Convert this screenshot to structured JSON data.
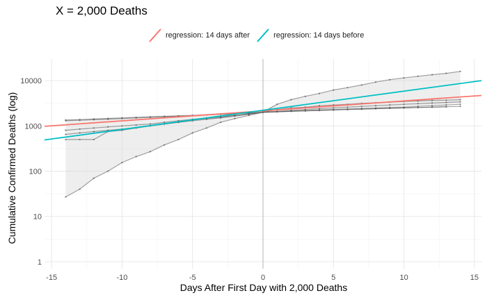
{
  "title": "X = 2,000 Deaths",
  "legend": {
    "items": [
      {
        "label": "regression: 14 days after",
        "color": "#F8766D"
      },
      {
        "label": "regression: 14 days before",
        "color": "#00BFC4"
      }
    ]
  },
  "chart_data": {
    "type": "line",
    "title": "X = 2,000 Deaths",
    "xlabel": "Days After First Day with 2,000 Deaths",
    "ylabel": "Cumulative Confirmed Deaths (log)",
    "y_scale": "log10",
    "xlim": [
      -15.5,
      15.5
    ],
    "ylim": [
      0.7,
      30000
    ],
    "x_ticks": [
      -15,
      -10,
      -5,
      0,
      5,
      10,
      15
    ],
    "y_ticks": [
      1,
      10,
      100,
      1000,
      10000
    ],
    "x_tick_labels": [
      "-15",
      "-10",
      "-5",
      "0",
      "5",
      "10",
      "15"
    ],
    "y_tick_labels": [
      "1",
      "10",
      "100",
      "1000",
      "10000"
    ],
    "grid": true,
    "legend_position": "top",
    "vline_x": 0,
    "ribbon": {
      "x": [
        -14,
        -13,
        -12,
        -11,
        -10,
        -9,
        -8,
        -7,
        -6,
        -5,
        -4,
        -3,
        -2,
        -1,
        0,
        1,
        2,
        3,
        4,
        5,
        6,
        7,
        8,
        9,
        10,
        11,
        12,
        13,
        14
      ],
      "lower": [
        27,
        40,
        70,
        100,
        155,
        210,
        270,
        380,
        500,
        700,
        900,
        1200,
        1450,
        1700,
        2000,
        2050,
        2100,
        2150,
        2200,
        2300,
        2350,
        2400,
        2500,
        2550,
        2650,
        2750,
        2850,
        2950,
        3200
      ],
      "upper": [
        1380,
        1400,
        1450,
        1500,
        1560,
        1600,
        1650,
        1700,
        1760,
        1800,
        1840,
        1890,
        1950,
        2000,
        2300,
        3000,
        3800,
        4500,
        5200,
        6200,
        7000,
        8000,
        9300,
        10500,
        11500,
        12500,
        13500,
        14500,
        16000
      ]
    },
    "series": [
      {
        "values": [
          27,
          40,
          70,
          100,
          155,
          210,
          270,
          380,
          500,
          700,
          900,
          1200,
          1450,
          1700,
          2000,
          3000,
          3800,
          4500,
          5200,
          6200,
          7000,
          8000,
          9300,
          10500,
          11500,
          12500,
          13500,
          14500,
          16000
        ]
      },
      {
        "values": [
          500,
          500,
          500,
          750,
          800,
          900,
          1000,
          1100,
          1200,
          1350,
          1450,
          1550,
          1700,
          1850,
          2000,
          2300,
          2500,
          2600,
          2800,
          2900,
          3000,
          3150,
          3250,
          3350,
          3450,
          3550,
          3650,
          3700,
          3800
        ]
      },
      {
        "values": [
          650,
          700,
          750,
          800,
          850,
          900,
          1000,
          1100,
          1200,
          1300,
          1400,
          1500,
          1650,
          1800,
          2000,
          2100,
          2200,
          2300,
          2400,
          2500,
          2600,
          2700,
          2800,
          2900,
          3000,
          3100,
          3200,
          3300,
          3400
        ]
      },
      {
        "values": [
          800,
          850,
          900,
          950,
          1000,
          1050,
          1100,
          1200,
          1300,
          1400,
          1500,
          1600,
          1700,
          1850,
          2000,
          2050,
          2100,
          2150,
          2200,
          2250,
          2300,
          2350,
          2400,
          2450,
          2500,
          2550,
          2600,
          2650,
          2700
        ]
      },
      {
        "values": [
          1350,
          1380,
          1420,
          1460,
          1500,
          1540,
          1580,
          1620,
          1660,
          1700,
          1750,
          1800,
          1850,
          1920,
          2000,
          2050,
          2100,
          2150,
          2200,
          2250,
          2300,
          2350,
          2400,
          2450,
          2500,
          2550,
          2600,
          2650,
          null
        ]
      },
      {
        "values": [
          1300,
          1330,
          1370,
          1410,
          1450,
          1500,
          1550,
          1600,
          1650,
          1700,
          1760,
          1820,
          1880,
          1940,
          2000,
          2060,
          2120,
          2180,
          2240,
          2300,
          2360,
          2420,
          2480,
          2540,
          2600,
          2700,
          2800,
          2900,
          3000
        ]
      }
    ],
    "regressions": [
      {
        "name": "regression: 14 days after",
        "color": "#F8766D",
        "x": [
          -15.5,
          15.5
        ],
        "y": [
          980,
          4700
        ]
      },
      {
        "name": "regression: 14 days before",
        "color": "#00BFC4",
        "x": [
          -15.5,
          15.5
        ],
        "y": [
          490,
          10000
        ]
      }
    ]
  }
}
